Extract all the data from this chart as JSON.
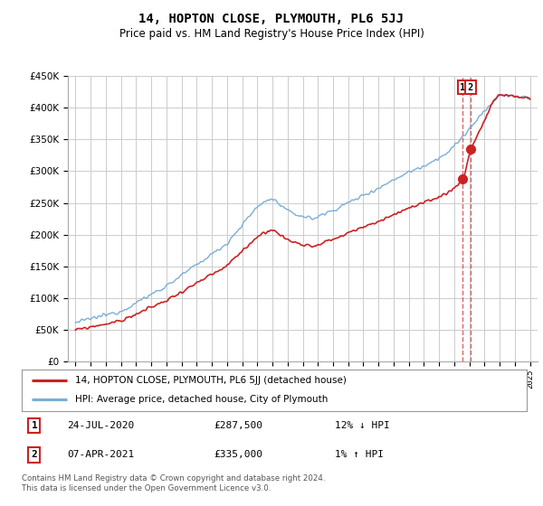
{
  "title": "14, HOPTON CLOSE, PLYMOUTH, PL6 5JJ",
  "subtitle": "Price paid vs. HM Land Registry's House Price Index (HPI)",
  "legend_line1": "14, HOPTON CLOSE, PLYMOUTH, PL6 5JJ (detached house)",
  "legend_line2": "HPI: Average price, detached house, City of Plymouth",
  "sale1_date": "24-JUL-2020",
  "sale1_price": 287500,
  "sale1_pct": "12% ↓ HPI",
  "sale2_date": "07-APR-2021",
  "sale2_price": 335000,
  "sale2_pct": "1% ↑ HPI",
  "footnote": "Contains HM Land Registry data © Crown copyright and database right 2024.\nThis data is licensed under the Open Government Licence v3.0.",
  "ylim": [
    0,
    450000
  ],
  "yticks": [
    0,
    50000,
    100000,
    150000,
    200000,
    250000,
    300000,
    350000,
    400000,
    450000
  ],
  "hpi_color": "#7aaed6",
  "price_color": "#cc2222",
  "bg_color": "#ffffff",
  "grid_color": "#cccccc",
  "hpi_keys_t": [
    0,
    0.1,
    0.2,
    0.33,
    0.4,
    0.43,
    0.47,
    0.52,
    0.57,
    0.62,
    0.67,
    0.72,
    0.77,
    0.82,
    0.87,
    0.93,
    1.0
  ],
  "hpi_keys_v": [
    62000,
    80000,
    120000,
    185000,
    245000,
    258000,
    235000,
    225000,
    240000,
    258000,
    275000,
    295000,
    310000,
    330000,
    370000,
    420000,
    415000
  ],
  "red_scale": 0.88,
  "sale1_t": 0.852,
  "sale2_t": 0.868
}
